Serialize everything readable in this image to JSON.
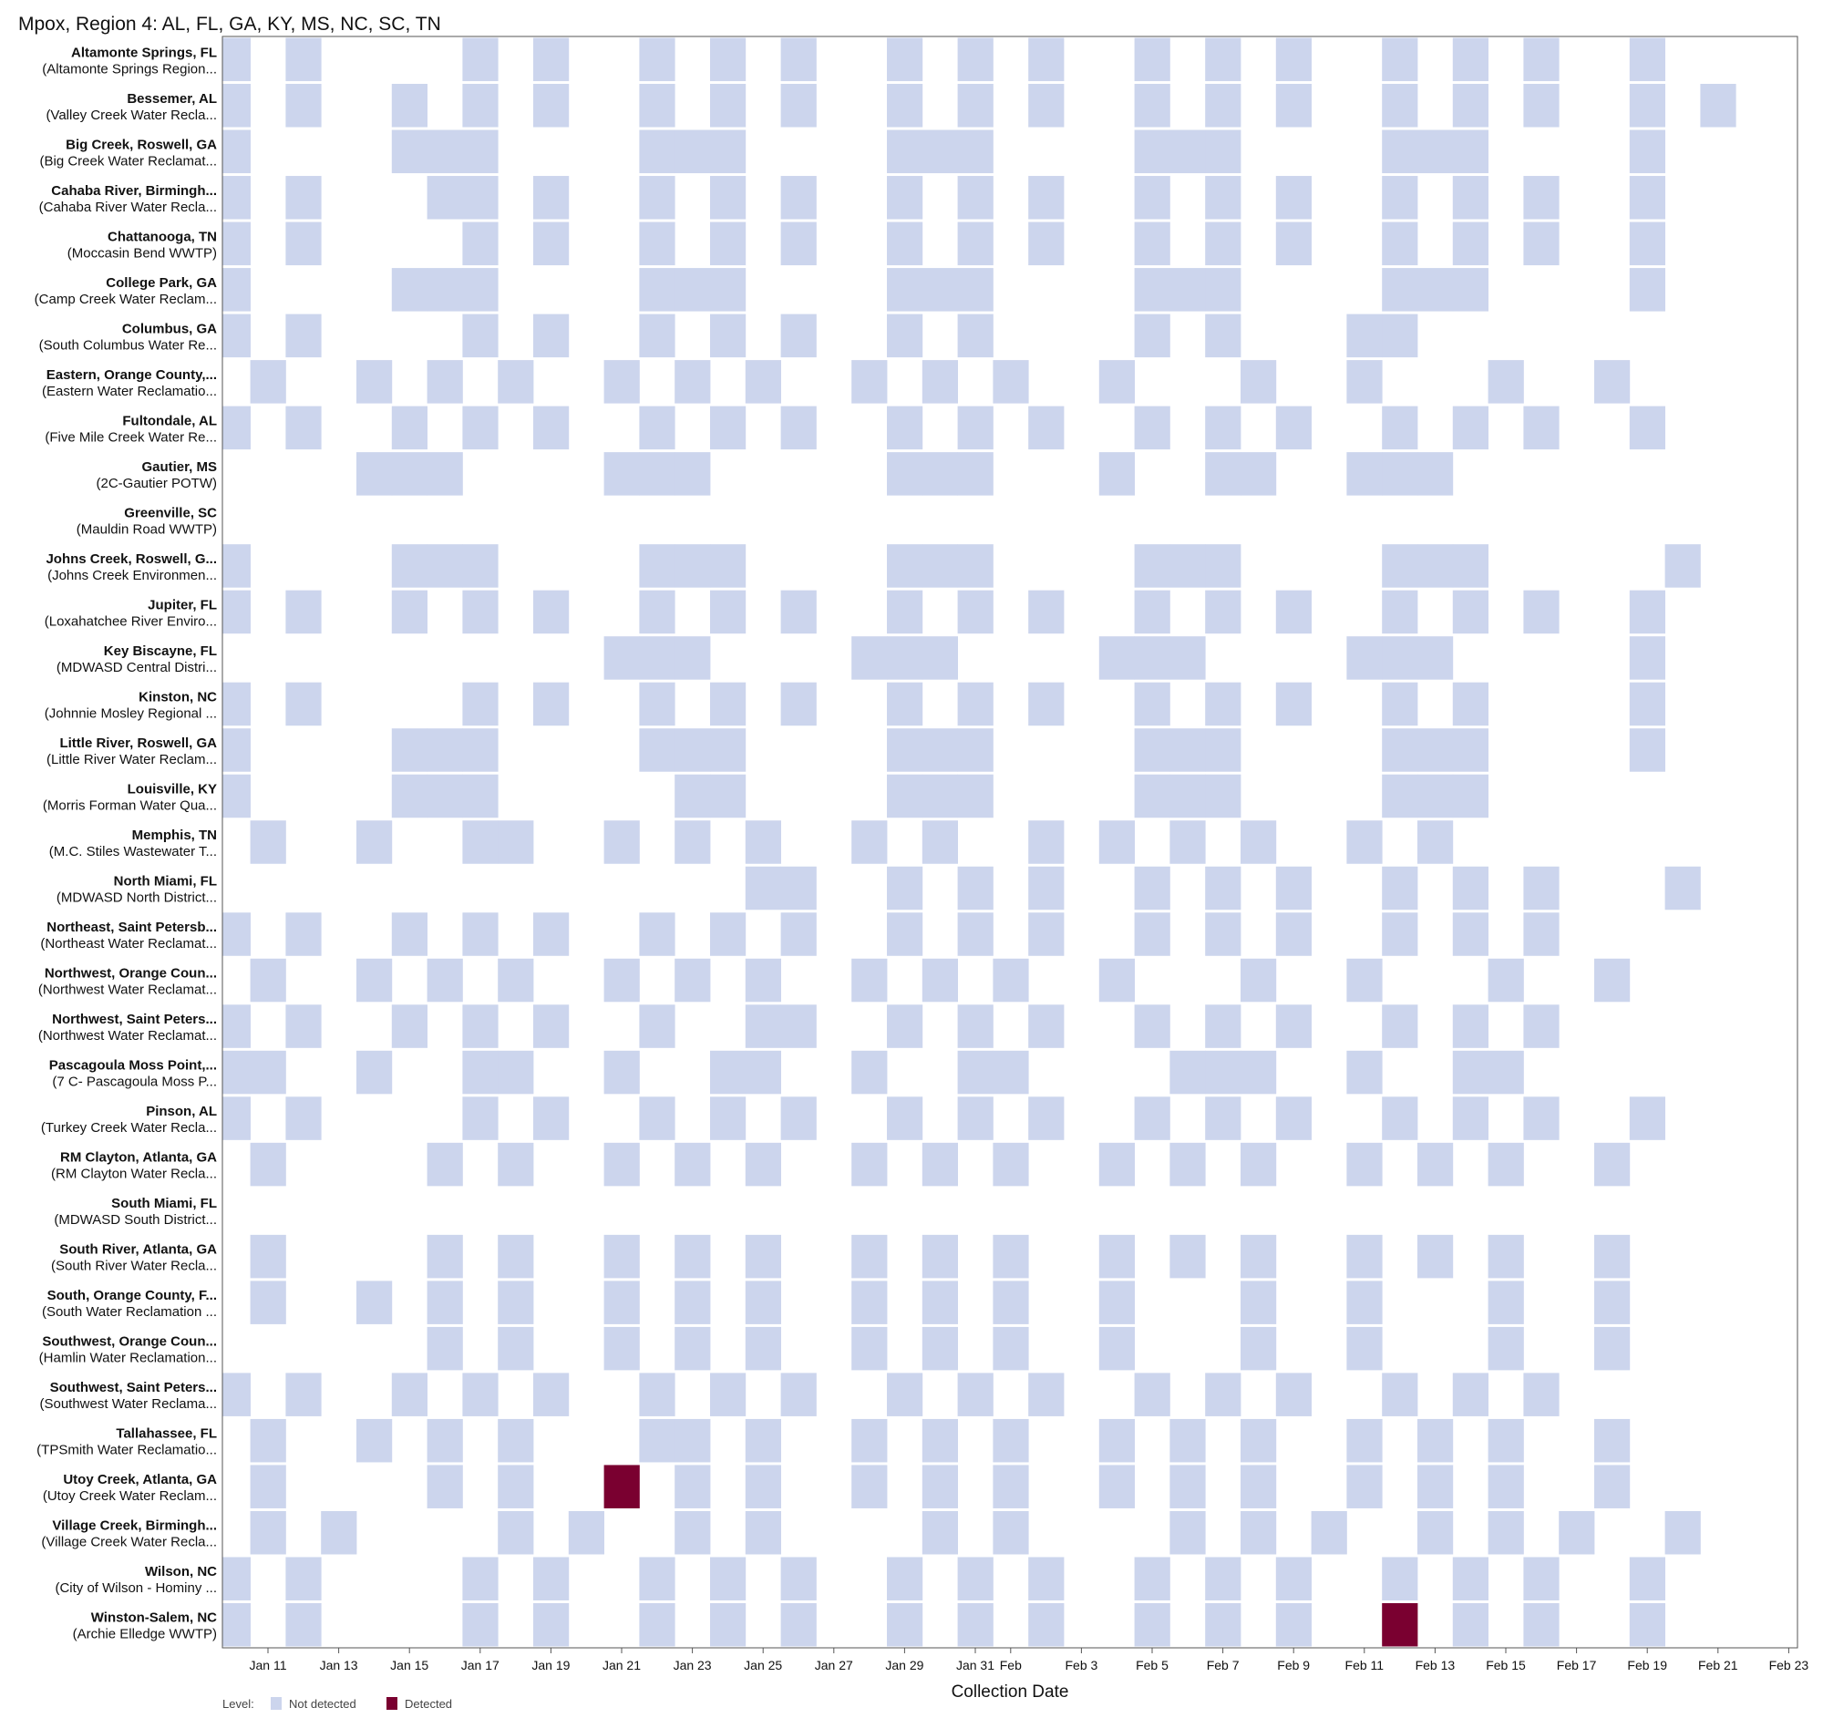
{
  "chart_data": {
    "type": "heatmap",
    "title": "Mpox, Region 4: AL, FL, GA, KY, MS, NC, SC, TN",
    "xlabel": "Collection Date",
    "ylabel": "",
    "year": 2025,
    "x_range": [
      "Jan 10",
      "Feb 23"
    ],
    "x_ticks": [
      {
        "date": "Jan 11",
        "label": "Jan 11"
      },
      {
        "date": "Jan 13",
        "label": "Jan 13"
      },
      {
        "date": "Jan 15",
        "label": "Jan 15"
      },
      {
        "date": "Jan 17",
        "label": "Jan 17"
      },
      {
        "date": "Jan 19",
        "label": "Jan 19"
      },
      {
        "date": "Jan 21",
        "label": "Jan 21"
      },
      {
        "date": "Jan 23",
        "label": "Jan 23"
      },
      {
        "date": "Jan 25",
        "label": "Jan 25"
      },
      {
        "date": "Jan 27",
        "label": "Jan 27"
      },
      {
        "date": "Jan 29",
        "label": "Jan 29"
      },
      {
        "date": "Jan 31",
        "label": "Jan 31"
      },
      {
        "date": "Feb 1",
        "label": "Feb"
      },
      {
        "date": "Feb 3",
        "label": "Feb 3"
      },
      {
        "date": "Feb 5",
        "label": "Feb 5"
      },
      {
        "date": "Feb 7",
        "label": "Feb 7"
      },
      {
        "date": "Feb 9",
        "label": "Feb 9"
      },
      {
        "date": "Feb 11",
        "label": "Feb 11"
      },
      {
        "date": "Feb 13",
        "label": "Feb 13"
      },
      {
        "date": "Feb 15",
        "label": "Feb 15"
      },
      {
        "date": "Feb 17",
        "label": "Feb 17"
      },
      {
        "date": "Feb 19",
        "label": "Feb 19"
      },
      {
        "date": "Feb 21",
        "label": "Feb 21"
      },
      {
        "date": "Feb 23",
        "label": "Feb 23"
      }
    ],
    "grid": false,
    "legend": {
      "placement": "bottom-left",
      "title": "Level:",
      "items": [
        {
          "label": "Not detected",
          "color": "#ccd5ed"
        },
        {
          "label": "Detected",
          "color": "#7a0030"
        }
      ]
    },
    "colors": {
      "not_detected": "#ccd5ed",
      "detected": "#7a0030"
    },
    "sites": [
      {
        "name": "Altamonte Springs, FL",
        "plant": "(Altamonte Springs Region...",
        "not_detected": [
          "Jan 10",
          "Jan 12",
          "Jan 17",
          "Jan 19",
          "Jan 22",
          "Jan 24",
          "Jan 26",
          "Jan 29",
          "Jan 31",
          "Feb 2",
          "Feb 5",
          "Feb 7",
          "Feb 9",
          "Feb 12",
          "Feb 14",
          "Feb 16",
          "Feb 19"
        ],
        "detected": []
      },
      {
        "name": "Bessemer, AL",
        "plant": "(Valley Creek Water Recla...",
        "not_detected": [
          "Jan 10",
          "Jan 12",
          "Jan 15",
          "Jan 17",
          "Jan 19",
          "Jan 22",
          "Jan 24",
          "Jan 26",
          "Jan 29",
          "Jan 31",
          "Feb 2",
          "Feb 5",
          "Feb 7",
          "Feb 9",
          "Feb 12",
          "Feb 14",
          "Feb 16",
          "Feb 19",
          "Feb 21"
        ],
        "detected": []
      },
      {
        "name": "Big Creek, Roswell, GA",
        "plant": "(Big Creek Water Reclamat...",
        "not_detected": [
          "Jan 10",
          "Jan 15",
          "Jan 16",
          "Jan 17",
          "Jan 22",
          "Jan 23",
          "Jan 24",
          "Jan 29",
          "Jan 30",
          "Jan 31",
          "Feb 5",
          "Feb 6",
          "Feb 7",
          "Feb 12",
          "Feb 13",
          "Feb 14",
          "Feb 19"
        ],
        "detected": []
      },
      {
        "name": "Cahaba River, Birmingh...",
        "plant": "(Cahaba River Water Recla...",
        "not_detected": [
          "Jan 10",
          "Jan 12",
          "Jan 16",
          "Jan 17",
          "Jan 19",
          "Jan 22",
          "Jan 24",
          "Jan 26",
          "Jan 29",
          "Jan 31",
          "Feb 2",
          "Feb 5",
          "Feb 7",
          "Feb 9",
          "Feb 12",
          "Feb 14",
          "Feb 16",
          "Feb 19"
        ],
        "detected": []
      },
      {
        "name": "Chattanooga, TN",
        "plant": "(Moccasin Bend WWTP)",
        "not_detected": [
          "Jan 10",
          "Jan 12",
          "Jan 17",
          "Jan 19",
          "Jan 22",
          "Jan 24",
          "Jan 26",
          "Jan 29",
          "Jan 31",
          "Feb 2",
          "Feb 5",
          "Feb 7",
          "Feb 9",
          "Feb 12",
          "Feb 14",
          "Feb 16",
          "Feb 19"
        ],
        "detected": []
      },
      {
        "name": "College Park, GA",
        "plant": "(Camp Creek Water Reclam...",
        "not_detected": [
          "Jan 10",
          "Jan 15",
          "Jan 16",
          "Jan 17",
          "Jan 22",
          "Jan 23",
          "Jan 24",
          "Jan 29",
          "Jan 30",
          "Jan 31",
          "Feb 5",
          "Feb 6",
          "Feb 7",
          "Feb 12",
          "Feb 13",
          "Feb 14",
          "Feb 19"
        ],
        "detected": []
      },
      {
        "name": "Columbus, GA",
        "plant": "(South Columbus Water Re...",
        "not_detected": [
          "Jan 10",
          "Jan 12",
          "Jan 17",
          "Jan 19",
          "Jan 22",
          "Jan 24",
          "Jan 26",
          "Jan 29",
          "Jan 31",
          "Feb 5",
          "Feb 7",
          "Feb 11",
          "Feb 12"
        ],
        "detected": []
      },
      {
        "name": "Eastern, Orange County,...",
        "plant": "(Eastern Water Reclamatio...",
        "not_detected": [
          "Jan 9",
          "Jan 11",
          "Jan 14",
          "Jan 16",
          "Jan 18",
          "Jan 21",
          "Jan 23",
          "Jan 25",
          "Jan 28",
          "Jan 30",
          "Feb 1",
          "Feb 4",
          "Feb 8",
          "Feb 11",
          "Feb 15",
          "Feb 18"
        ],
        "detected": []
      },
      {
        "name": "Fultondale, AL",
        "plant": "(Five Mile Creek Water Re...",
        "not_detected": [
          "Jan 10",
          "Jan 12",
          "Jan 15",
          "Jan 17",
          "Jan 19",
          "Jan 22",
          "Jan 24",
          "Jan 26",
          "Jan 29",
          "Jan 31",
          "Feb 2",
          "Feb 5",
          "Feb 7",
          "Feb 9",
          "Feb 12",
          "Feb 14",
          "Feb 16",
          "Feb 19"
        ],
        "detected": []
      },
      {
        "name": "Gautier, MS",
        "plant": "(2C-Gautier POTW)",
        "not_detected": [
          "Jan 9",
          "Jan 14",
          "Jan 15",
          "Jan 16",
          "Jan 21",
          "Jan 22",
          "Jan 23",
          "Jan 29",
          "Jan 30",
          "Jan 31",
          "Feb 4",
          "Feb 7",
          "Feb 8",
          "Feb 11",
          "Feb 12",
          "Feb 13"
        ],
        "detected": []
      },
      {
        "name": "Greenville, SC",
        "plant": "(Mauldin Road WWTP)",
        "not_detected": [],
        "detected": []
      },
      {
        "name": "Johns Creek, Roswell, G...",
        "plant": "(Johns Creek Environmen...",
        "not_detected": [
          "Jan 10",
          "Jan 15",
          "Jan 16",
          "Jan 17",
          "Jan 22",
          "Jan 23",
          "Jan 24",
          "Jan 29",
          "Jan 30",
          "Jan 31",
          "Feb 5",
          "Feb 6",
          "Feb 7",
          "Feb 12",
          "Feb 13",
          "Feb 14",
          "Feb 20"
        ],
        "detected": []
      },
      {
        "name": "Jupiter, FL",
        "plant": "(Loxahatchee River Enviro...",
        "not_detected": [
          "Jan 10",
          "Jan 12",
          "Jan 15",
          "Jan 17",
          "Jan 19",
          "Jan 22",
          "Jan 24",
          "Jan 26",
          "Jan 29",
          "Jan 31",
          "Feb 2",
          "Feb 5",
          "Feb 7",
          "Feb 9",
          "Feb 12",
          "Feb 14",
          "Feb 16",
          "Feb 19"
        ],
        "detected": []
      },
      {
        "name": "Key Biscayne, FL",
        "plant": "(MDWASD Central Distri...",
        "not_detected": [
          "Jan 21",
          "Jan 22",
          "Jan 23",
          "Jan 28",
          "Jan 29",
          "Jan 30",
          "Feb 4",
          "Feb 5",
          "Feb 6",
          "Feb 11",
          "Feb 12",
          "Feb 13",
          "Feb 19"
        ],
        "detected": []
      },
      {
        "name": "Kinston, NC",
        "plant": "(Johnnie Mosley Regional ...",
        "not_detected": [
          "Jan 10",
          "Jan 12",
          "Jan 17",
          "Jan 19",
          "Jan 22",
          "Jan 24",
          "Jan 26",
          "Jan 29",
          "Jan 31",
          "Feb 2",
          "Feb 5",
          "Feb 7",
          "Feb 9",
          "Feb 12",
          "Feb 14",
          "Feb 19"
        ],
        "detected": []
      },
      {
        "name": "Little River, Roswell, GA",
        "plant": "(Little River Water Reclam...",
        "not_detected": [
          "Jan 10",
          "Jan 15",
          "Jan 16",
          "Jan 17",
          "Jan 22",
          "Jan 23",
          "Jan 24",
          "Jan 29",
          "Jan 30",
          "Jan 31",
          "Feb 5",
          "Feb 6",
          "Feb 7",
          "Feb 12",
          "Feb 13",
          "Feb 14",
          "Feb 19"
        ],
        "detected": []
      },
      {
        "name": "Louisville, KY",
        "plant": "(Morris Forman Water Qua...",
        "not_detected": [
          "Jan 10",
          "Jan 15",
          "Jan 16",
          "Jan 17",
          "Jan 23",
          "Jan 24",
          "Jan 29",
          "Jan 30",
          "Jan 31",
          "Feb 5",
          "Feb 6",
          "Feb 7",
          "Feb 12",
          "Feb 13",
          "Feb 14"
        ],
        "detected": []
      },
      {
        "name": "Memphis, TN",
        "plant": "(M.C. Stiles Wastewater T...",
        "not_detected": [
          "Jan 9",
          "Jan 11",
          "Jan 14",
          "Jan 17",
          "Jan 18",
          "Jan 21",
          "Jan 23",
          "Jan 25",
          "Jan 28",
          "Jan 30",
          "Feb 2",
          "Feb 4",
          "Feb 6",
          "Feb 8",
          "Feb 11",
          "Feb 13"
        ],
        "detected": []
      },
      {
        "name": "North Miami, FL",
        "plant": "(MDWASD North District...",
        "not_detected": [
          "Jan 25",
          "Jan 26",
          "Jan 29",
          "Jan 31",
          "Feb 2",
          "Feb 5",
          "Feb 7",
          "Feb 9",
          "Feb 12",
          "Feb 14",
          "Feb 16",
          "Feb 20"
        ],
        "detected": []
      },
      {
        "name": "Northeast, Saint Petersb...",
        "plant": "(Northeast Water Reclamat...",
        "not_detected": [
          "Jan 10",
          "Jan 12",
          "Jan 15",
          "Jan 17",
          "Jan 19",
          "Jan 22",
          "Jan 24",
          "Jan 26",
          "Jan 29",
          "Jan 31",
          "Feb 2",
          "Feb 5",
          "Feb 7",
          "Feb 9",
          "Feb 12",
          "Feb 14",
          "Feb 16"
        ],
        "detected": []
      },
      {
        "name": "Northwest, Orange Coun...",
        "plant": "(Northwest Water Reclamat...",
        "not_detected": [
          "Jan 9",
          "Jan 11",
          "Jan 14",
          "Jan 16",
          "Jan 18",
          "Jan 21",
          "Jan 23",
          "Jan 25",
          "Jan 28",
          "Jan 30",
          "Feb 1",
          "Feb 4",
          "Feb 8",
          "Feb 11",
          "Feb 15",
          "Feb 18"
        ],
        "detected": []
      },
      {
        "name": "Northwest, Saint Peters...",
        "plant": "(Northwest Water Reclamat...",
        "not_detected": [
          "Jan 10",
          "Jan 12",
          "Jan 15",
          "Jan 17",
          "Jan 19",
          "Jan 22",
          "Jan 25",
          "Jan 26",
          "Jan 29",
          "Jan 31",
          "Feb 2",
          "Feb 5",
          "Feb 7",
          "Feb 9",
          "Feb 12",
          "Feb 14",
          "Feb 16"
        ],
        "detected": []
      },
      {
        "name": "Pascagoula Moss Point,...",
        "plant": "(7 C- Pascagoula Moss P...",
        "not_detected": [
          "Jan 10",
          "Jan 11",
          "Jan 14",
          "Jan 17",
          "Jan 18",
          "Jan 21",
          "Jan 24",
          "Jan 25",
          "Jan 28",
          "Jan 31",
          "Feb 1",
          "Feb 6",
          "Feb 7",
          "Feb 8",
          "Feb 11",
          "Feb 14",
          "Feb 15"
        ],
        "detected": []
      },
      {
        "name": "Pinson, AL",
        "plant": "(Turkey Creek Water Recla...",
        "not_detected": [
          "Jan 10",
          "Jan 12",
          "Jan 17",
          "Jan 19",
          "Jan 22",
          "Jan 24",
          "Jan 26",
          "Jan 29",
          "Jan 31",
          "Feb 2",
          "Feb 5",
          "Feb 7",
          "Feb 9",
          "Feb 12",
          "Feb 14",
          "Feb 16",
          "Feb 19"
        ],
        "detected": []
      },
      {
        "name": "RM Clayton, Atlanta, GA",
        "plant": "(RM Clayton Water Recla...",
        "not_detected": [
          "Jan 9",
          "Jan 11",
          "Jan 16",
          "Jan 18",
          "Jan 21",
          "Jan 23",
          "Jan 25",
          "Jan 28",
          "Jan 30",
          "Feb 1",
          "Feb 4",
          "Feb 6",
          "Feb 8",
          "Feb 11",
          "Feb 13",
          "Feb 15",
          "Feb 18"
        ],
        "detected": []
      },
      {
        "name": "South Miami, FL",
        "plant": "(MDWASD South District...",
        "not_detected": [],
        "detected": []
      },
      {
        "name": "South River, Atlanta, GA",
        "plant": "(South River Water Recla...",
        "not_detected": [
          "Jan 9",
          "Jan 11",
          "Jan 16",
          "Jan 18",
          "Jan 21",
          "Jan 23",
          "Jan 25",
          "Jan 28",
          "Jan 30",
          "Feb 1",
          "Feb 4",
          "Feb 6",
          "Feb 8",
          "Feb 11",
          "Feb 13",
          "Feb 15",
          "Feb 18"
        ],
        "detected": []
      },
      {
        "name": "South, Orange County, F...",
        "plant": "(South Water Reclamation ...",
        "not_detected": [
          "Jan 9",
          "Jan 11",
          "Jan 14",
          "Jan 16",
          "Jan 18",
          "Jan 21",
          "Jan 23",
          "Jan 25",
          "Jan 28",
          "Jan 30",
          "Feb 1",
          "Feb 4",
          "Feb 8",
          "Feb 11",
          "Feb 15",
          "Feb 18"
        ],
        "detected": []
      },
      {
        "name": "Southwest, Orange Coun...",
        "plant": "(Hamlin Water Reclamation...",
        "not_detected": [
          "Jan 16",
          "Jan 18",
          "Jan 21",
          "Jan 23",
          "Jan 25",
          "Jan 28",
          "Jan 30",
          "Feb 1",
          "Feb 4",
          "Feb 8",
          "Feb 11",
          "Feb 15",
          "Feb 18"
        ],
        "detected": []
      },
      {
        "name": "Southwest, Saint Peters...",
        "plant": "(Southwest Water Reclama...",
        "not_detected": [
          "Jan 10",
          "Jan 12",
          "Jan 15",
          "Jan 17",
          "Jan 19",
          "Jan 22",
          "Jan 24",
          "Jan 26",
          "Jan 29",
          "Jan 31",
          "Feb 2",
          "Feb 5",
          "Feb 7",
          "Feb 9",
          "Feb 12",
          "Feb 14",
          "Feb 16"
        ],
        "detected": []
      },
      {
        "name": "Tallahassee, FL",
        "plant": "(TPSmith Water Reclamatio...",
        "not_detected": [
          "Jan 9",
          "Jan 11",
          "Jan 14",
          "Jan 16",
          "Jan 18",
          "Jan 22",
          "Jan 23",
          "Jan 25",
          "Jan 28",
          "Jan 30",
          "Feb 1",
          "Feb 4",
          "Feb 6",
          "Feb 8",
          "Feb 11",
          "Feb 13",
          "Feb 15",
          "Feb 18"
        ],
        "detected": []
      },
      {
        "name": "Utoy Creek, Atlanta, GA",
        "plant": "(Utoy Creek Water Reclam...",
        "not_detected": [
          "Jan 9",
          "Jan 11",
          "Jan 16",
          "Jan 18",
          "Jan 23",
          "Jan 25",
          "Jan 28",
          "Jan 30",
          "Feb 1",
          "Feb 4",
          "Feb 6",
          "Feb 8",
          "Feb 11",
          "Feb 13",
          "Feb 15",
          "Feb 18"
        ],
        "detected": [
          "Jan 21"
        ]
      },
      {
        "name": "Village Creek, Birmingh...",
        "plant": "(Village Creek Water Recla...",
        "not_detected": [
          "Jan 9",
          "Jan 11",
          "Jan 13",
          "Jan 18",
          "Jan 20",
          "Jan 23",
          "Jan 25",
          "Jan 30",
          "Feb 1",
          "Feb 6",
          "Feb 8",
          "Feb 10",
          "Feb 13",
          "Feb 15",
          "Feb 17",
          "Feb 20"
        ],
        "detected": []
      },
      {
        "name": "Wilson, NC",
        "plant": "(City of Wilson - Hominy ...",
        "not_detected": [
          "Jan 10",
          "Jan 12",
          "Jan 17",
          "Jan 19",
          "Jan 22",
          "Jan 24",
          "Jan 26",
          "Jan 29",
          "Jan 31",
          "Feb 2",
          "Feb 5",
          "Feb 7",
          "Feb 9",
          "Feb 12",
          "Feb 14",
          "Feb 16",
          "Feb 19"
        ],
        "detected": []
      },
      {
        "name": "Winston-Salem, NC",
        "plant": "(Archie Elledge WWTP)",
        "not_detected": [
          "Jan 10",
          "Jan 12",
          "Jan 17",
          "Jan 19",
          "Jan 22",
          "Jan 24",
          "Jan 26",
          "Jan 29",
          "Jan 31",
          "Feb 2",
          "Feb 5",
          "Feb 7",
          "Feb 9",
          "Feb 14",
          "Feb 16",
          "Feb 19"
        ],
        "detected": [
          "Feb 12"
        ]
      }
    ]
  }
}
